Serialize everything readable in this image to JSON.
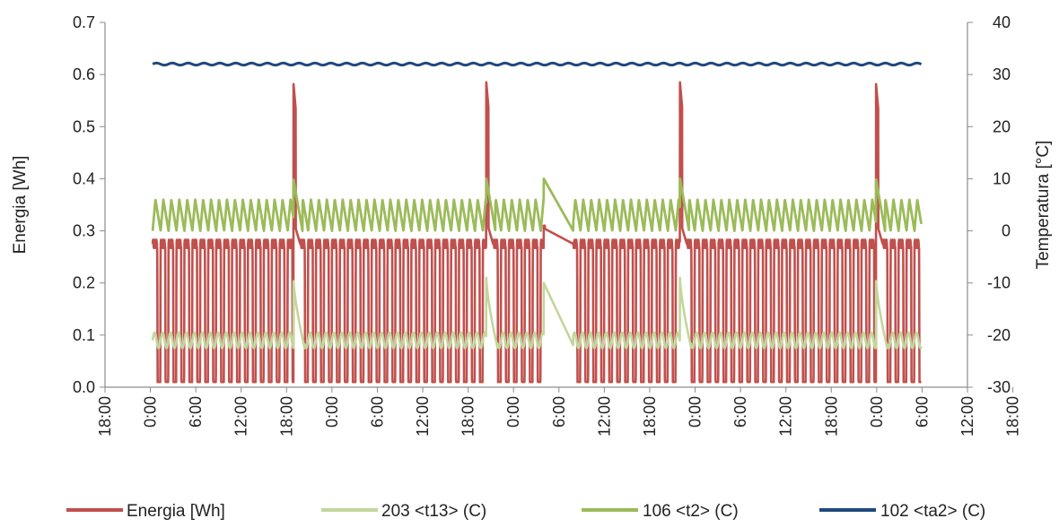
{
  "chart_data": {
    "type": "line",
    "y_left": {
      "label": "Energia [Wh]",
      "range": [
        0,
        0.7
      ],
      "ticks": [
        "0.0",
        "0.1",
        "0.2",
        "0.3",
        "0.4",
        "0.5",
        "0.6",
        "0.7"
      ]
    },
    "y_right": {
      "label": "Temperatura [°C]",
      "range": [
        -30,
        40
      ],
      "ticks": [
        "-30",
        "-20",
        "-10",
        "0",
        "10",
        "20",
        "30",
        "40"
      ]
    },
    "x_axis": {
      "unit": "hours",
      "range": [
        0,
        114
      ],
      "tick_step_hours": 6,
      "ticks": [
        "18:00",
        "0:00",
        "6:00",
        "12:00",
        "18:00",
        "0:00",
        "6:00",
        "12:00",
        "18:00",
        "0:00",
        "6:00",
        "12:00",
        "18:00",
        "0:00",
        "6:00",
        "12:00",
        "18:00",
        "0:00",
        "6:00",
        "12:00",
        "18:00"
      ]
    },
    "grid": false,
    "legend_position": "bottom",
    "defrost_events_hours": [
      24.9,
      50.4,
      76.0,
      101.9
    ],
    "long_defrost": {
      "start_hours": 58.0,
      "end_hours": 61.9
    },
    "data_span_hours": [
      6.3,
      107.9
    ],
    "series": [
      {
        "name": "Energia [Wh]",
        "axis": "left",
        "color": "#c0504d",
        "compressor_period_hours": 1.05,
        "on_level": 0.275,
        "off_level": 0.01,
        "spike_peak": 0.585
      },
      {
        "name": "203 <t13> (C)",
        "axis": "right",
        "color": "#c3d69b",
        "cycle_range": [
          -22.5,
          -19.5
        ],
        "peak_after_defrost": -9
      },
      {
        "name": "106 <t2> (C)",
        "axis": "right",
        "color": "#9bbb59",
        "cycle_range": [
          0,
          6
        ],
        "peak_after_defrost": 10
      },
      {
        "name": "102 <ta2> (C)",
        "axis": "right",
        "color": "#1f497d",
        "value": 32
      }
    ]
  }
}
